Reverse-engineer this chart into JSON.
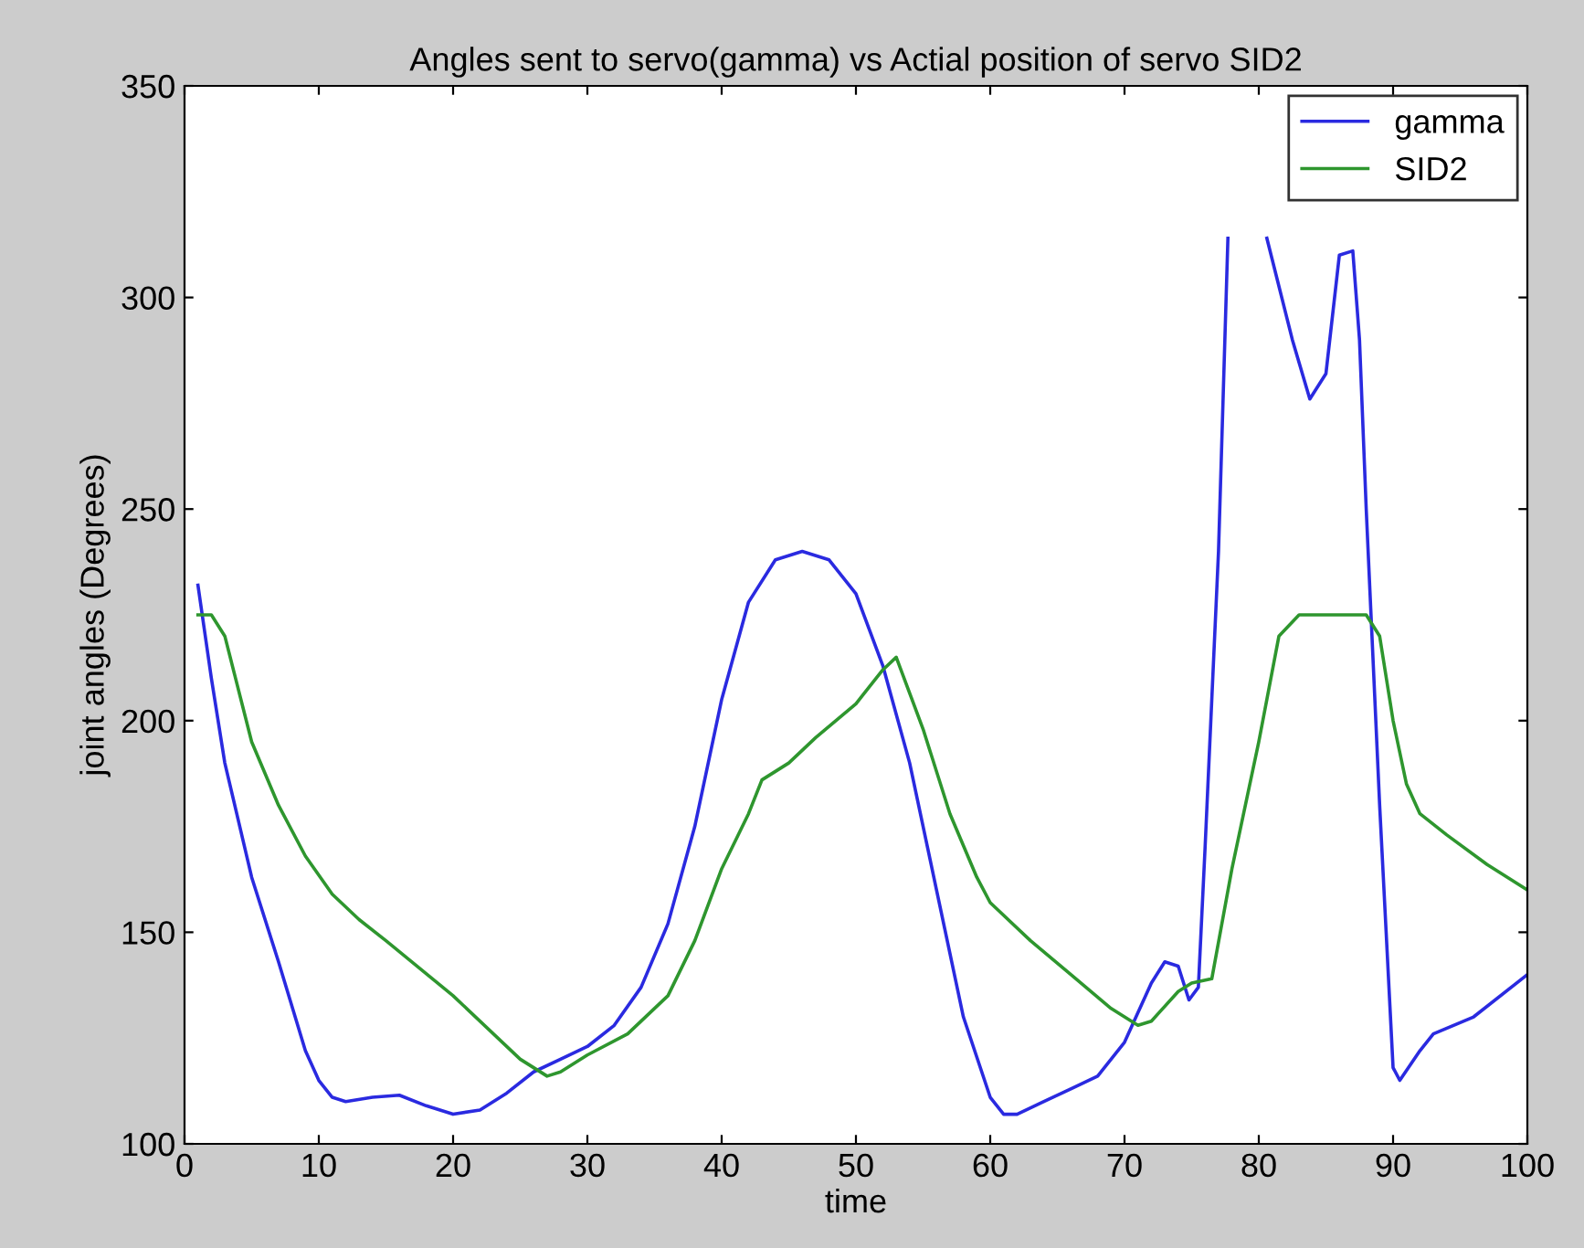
{
  "chart_data": {
    "type": "line",
    "title": "Angles sent to servo(gamma) vs Actial position of servo SID2",
    "xlabel": "time",
    "ylabel": "joint angles (Degrees)",
    "xlim": [
      0,
      100
    ],
    "xticks": [
      0,
      10,
      20,
      30,
      40,
      50,
      60,
      70,
      80,
      90,
      100
    ],
    "ylim": [
      100,
      350
    ],
    "yticks": [
      100,
      150,
      200,
      250,
      300,
      350
    ],
    "grid": false,
    "legend": "top right",
    "marker": "none",
    "line_style": "solid",
    "series": [
      {
        "name": "gamma",
        "color": "#2a2ae0",
        "x": [
          1,
          2,
          3,
          5,
          7,
          9,
          10,
          11,
          12,
          14,
          16,
          18,
          20,
          22,
          24,
          26,
          28,
          30,
          32,
          34,
          36,
          38,
          40,
          42,
          44,
          46,
          48,
          50,
          52,
          54,
          56,
          58,
          60,
          61,
          62,
          64,
          66,
          68,
          70,
          72,
          73,
          74,
          74.8,
          75.5,
          76,
          77,
          77.7,
          79,
          80.6,
          82.5,
          83.8,
          85,
          86,
          87,
          87.5,
          88,
          89,
          90,
          90.5,
          92,
          93,
          96,
          100
        ],
        "values": [
          232,
          210,
          190,
          163,
          143,
          122,
          115,
          111,
          110,
          111,
          111.5,
          109,
          107,
          108,
          112,
          117,
          120,
          123,
          128,
          137,
          152,
          175,
          205,
          228,
          238,
          240,
          238,
          230,
          213,
          190,
          160,
          130,
          111,
          107,
          107,
          110,
          113,
          116,
          124,
          138,
          143,
          142,
          134,
          137,
          170,
          240,
          314,
          null,
          314,
          290,
          276,
          282,
          310,
          311,
          290,
          250,
          180,
          118,
          115,
          122,
          126,
          130,
          140
        ]
      },
      {
        "name": "SID2",
        "color": "#2e962e",
        "x": [
          1,
          2,
          3,
          5,
          7,
          9,
          11,
          13,
          15,
          20,
          25,
          27,
          28,
          30,
          33,
          36,
          38,
          40,
          42,
          43,
          45,
          47,
          50,
          52,
          53,
          55,
          57,
          59,
          60,
          63,
          66,
          69,
          71,
          72,
          74,
          75,
          76.5,
          78,
          80,
          81.5,
          83,
          88,
          89,
          90,
          91,
          92,
          94,
          97,
          100
        ],
        "values": [
          225,
          225,
          220,
          195,
          180,
          168,
          159,
          153,
          148,
          135,
          120,
          116,
          117,
          121,
          126,
          135,
          148,
          165,
          178,
          186,
          190,
          196,
          204,
          212,
          215,
          198,
          178,
          163,
          157,
          148,
          140,
          132,
          128,
          129,
          136,
          138,
          139,
          165,
          195,
          220,
          225,
          225,
          220,
          200,
          185,
          178,
          173,
          166,
          160
        ]
      }
    ]
  }
}
